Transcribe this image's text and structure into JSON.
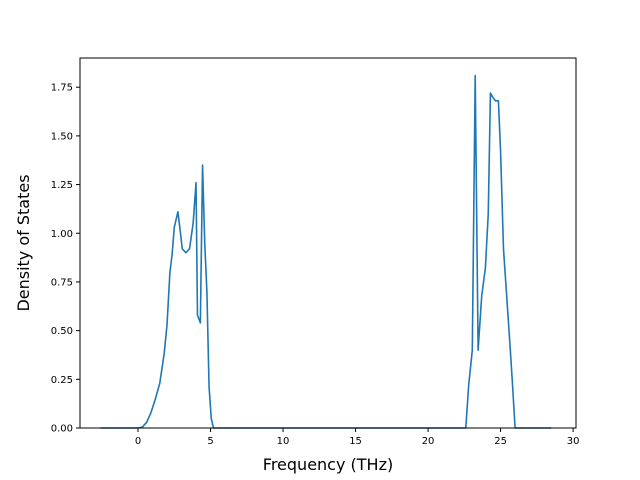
{
  "chart_data": {
    "type": "line",
    "title": "",
    "xlabel": "Frequency (THz)",
    "ylabel": "Density of States",
    "xlim": [
      -4.0,
      30.2
    ],
    "ylim": [
      0.0,
      1.9
    ],
    "xticks": [
      0,
      5,
      10,
      15,
      20,
      25,
      30
    ],
    "xtick_labels": [
      "0",
      "5",
      "10",
      "15",
      "20",
      "25",
      "30"
    ],
    "yticks": [
      0.0,
      0.25,
      0.5,
      0.75,
      1.0,
      1.25,
      1.5,
      1.75
    ],
    "ytick_labels": [
      "0.00",
      "0.25",
      "0.50",
      "0.75",
      "1.00",
      "1.25",
      "1.50",
      "1.75"
    ],
    "grid": false,
    "line_color": "#1f77b4",
    "series": [
      {
        "x": [
          -2.6,
          0.0,
          0.3,
          0.6,
          0.9,
          1.2,
          1.5,
          1.8,
          2.0,
          2.2,
          2.35,
          2.5,
          2.75,
          2.9,
          3.05,
          3.3,
          3.55,
          3.8,
          4.0,
          4.1,
          4.2,
          4.3,
          4.45,
          4.6,
          4.75,
          4.9,
          5.05,
          5.2,
          5.4,
          5.6,
          8.0,
          22.6,
          22.8,
          23.05,
          23.25,
          23.45,
          23.7,
          23.95,
          24.15,
          24.3,
          24.45,
          24.65,
          24.85,
          25.0,
          25.2,
          25.4,
          25.6,
          25.8,
          26.0,
          26.2,
          28.5
        ],
        "y": [
          0.0,
          0.0,
          0.005,
          0.03,
          0.08,
          0.15,
          0.23,
          0.38,
          0.53,
          0.8,
          0.89,
          1.03,
          1.11,
          1.02,
          0.92,
          0.9,
          0.92,
          1.05,
          1.26,
          0.58,
          0.56,
          0.54,
          1.35,
          0.95,
          0.7,
          0.21,
          0.05,
          0.0,
          0.0,
          0.0,
          0.0,
          0.0,
          0.22,
          0.4,
          1.81,
          0.4,
          0.68,
          0.82,
          1.1,
          1.72,
          1.7,
          1.68,
          1.68,
          1.42,
          0.92,
          0.7,
          0.48,
          0.25,
          0.0,
          0.0,
          0.0
        ]
      }
    ]
  }
}
